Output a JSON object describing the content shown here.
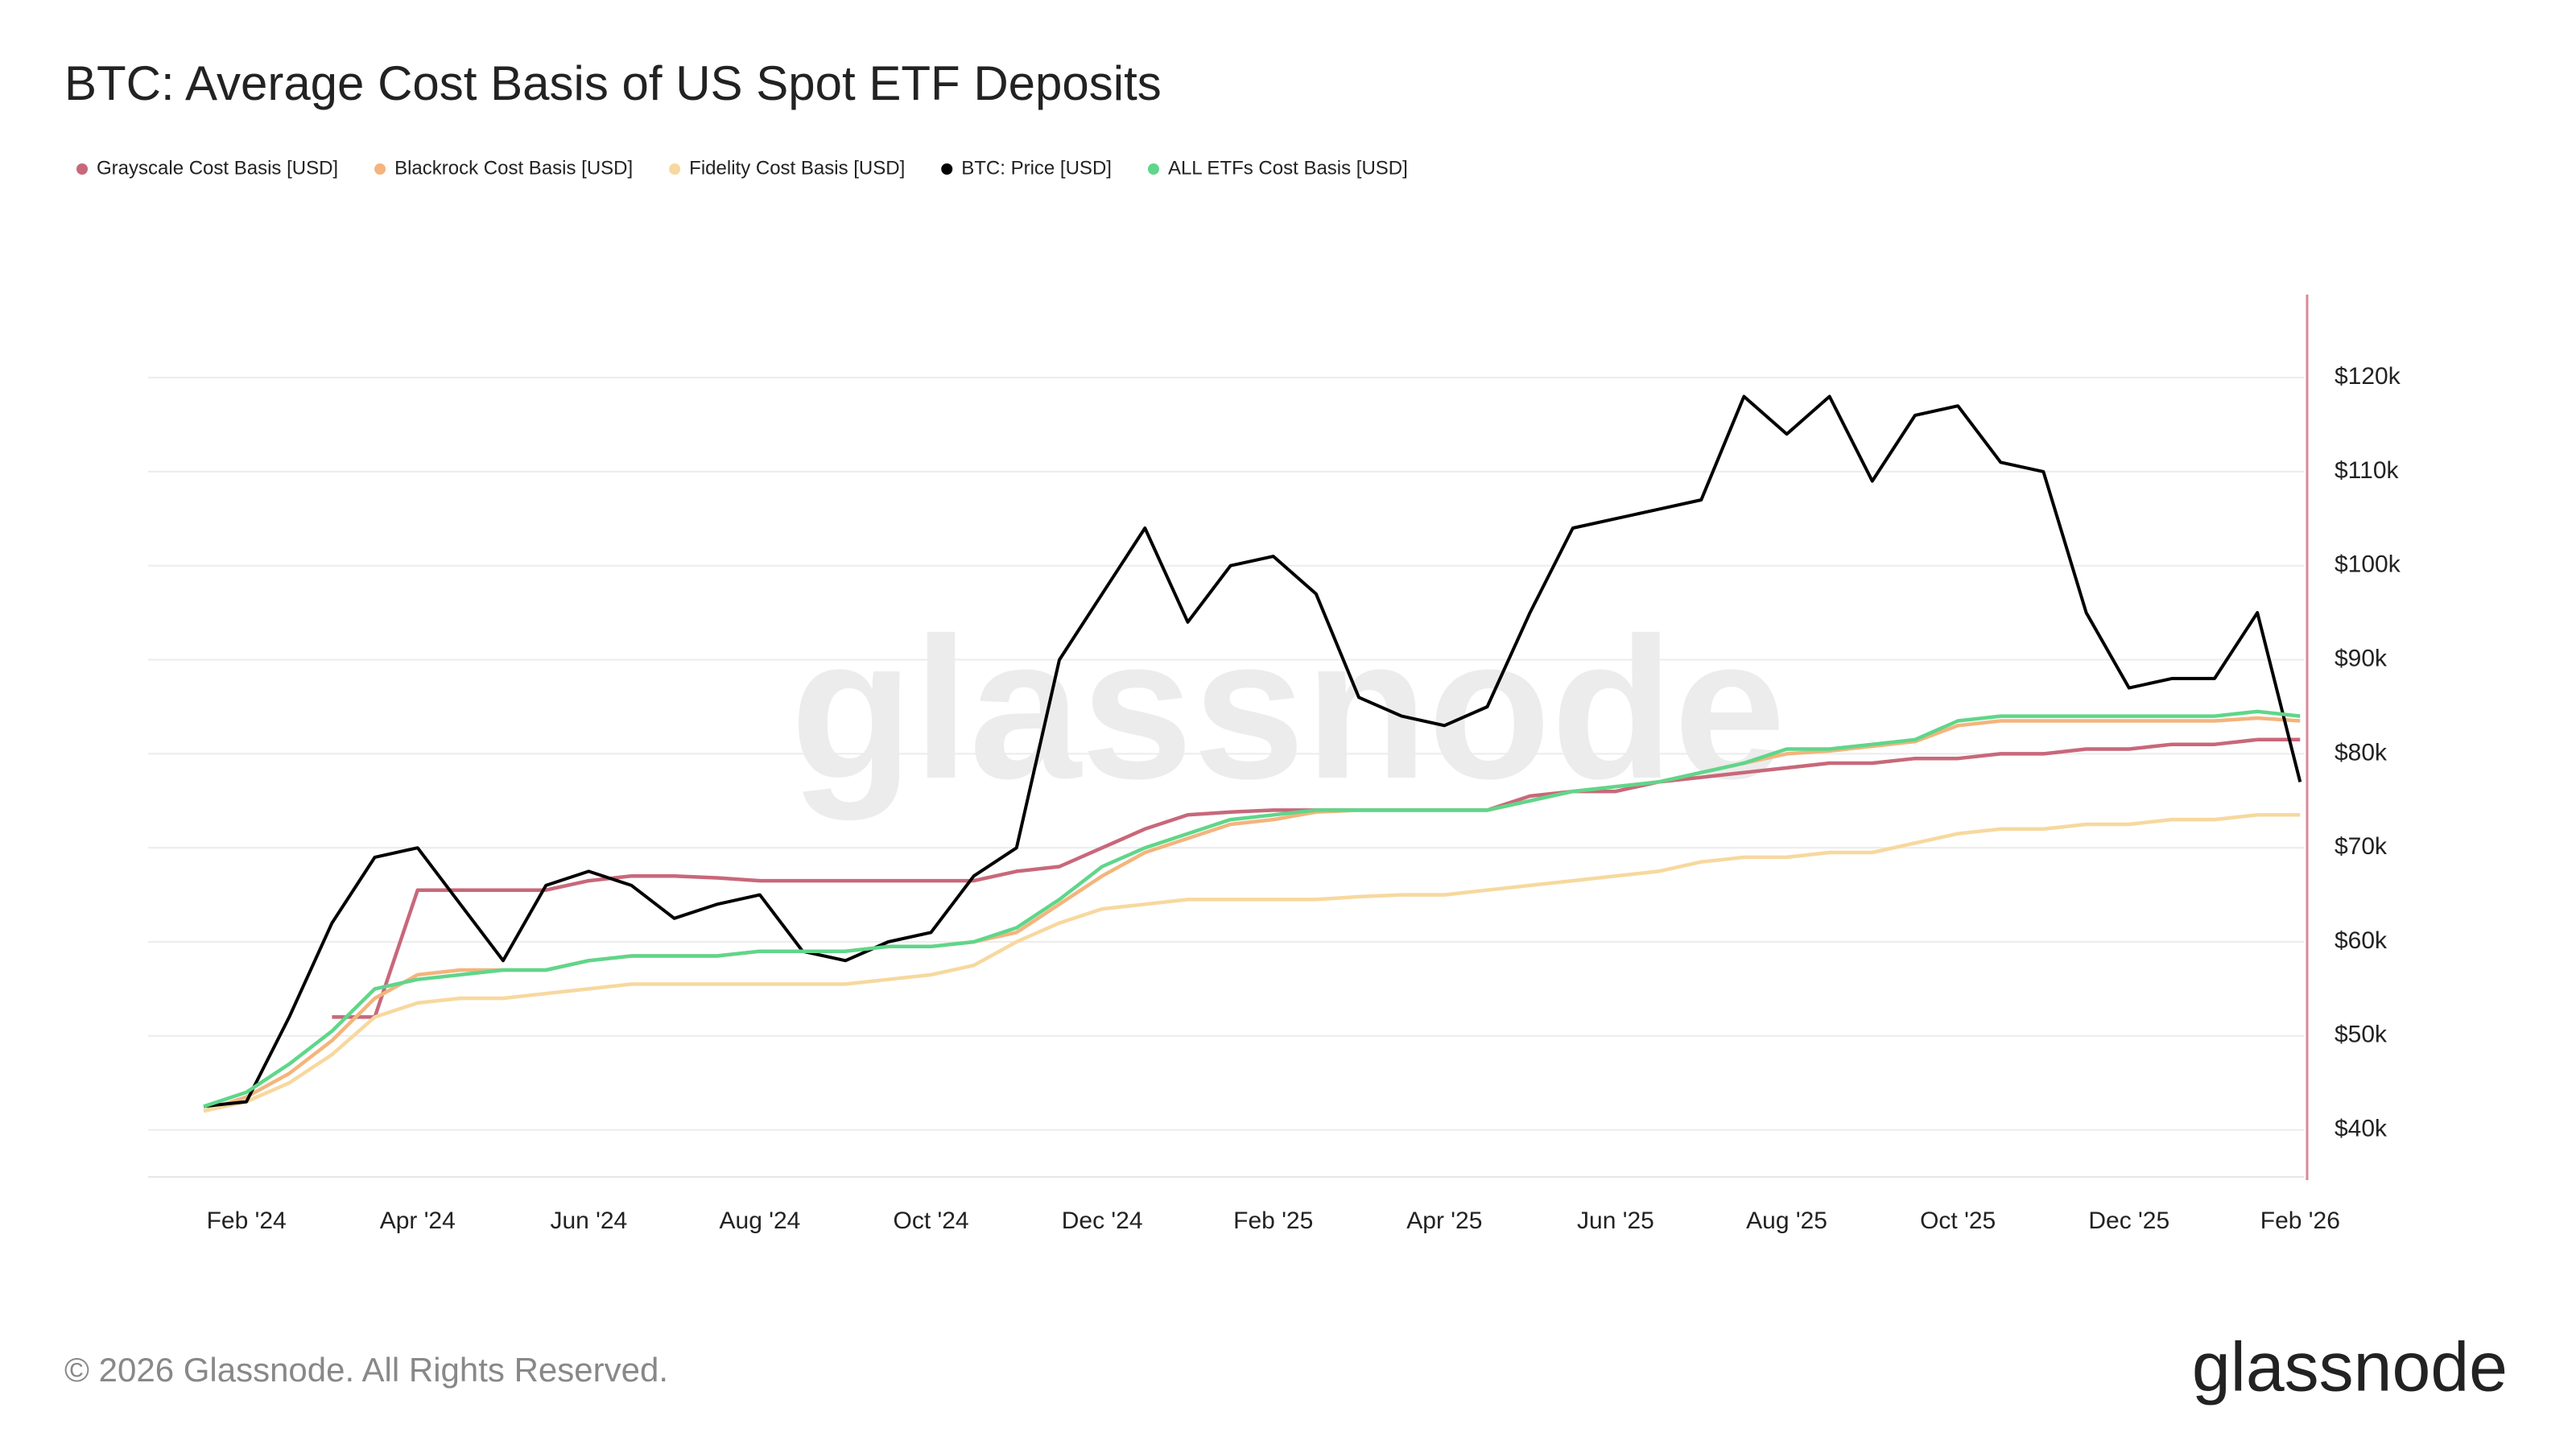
{
  "chart_data": {
    "type": "line",
    "title": "BTC: Average Cost Basis of US Spot ETF Deposits",
    "watermark": "glassnode",
    "footer": "© 2026 Glassnode. All Rights Reserved.",
    "brand": "glassnode",
    "categories": [
      null,
      "Feb '24",
      null,
      null,
      null,
      "Apr '24",
      null,
      null,
      null,
      "Jun '24",
      null,
      null,
      null,
      "Aug '24",
      null,
      null,
      null,
      "Oct '24",
      null,
      null,
      null,
      "Dec '24",
      null,
      null,
      null,
      "Feb '25",
      null,
      null,
      null,
      "Apr '25",
      null,
      null,
      null,
      "Jun '25",
      null,
      null,
      null,
      "Aug '25",
      null,
      null,
      null,
      "Oct '25",
      null,
      null,
      null,
      "Dec '25",
      null,
      null,
      null,
      "Feb '26"
    ],
    "series": [
      {
        "name": "Grayscale Cost Basis [USD]",
        "color": "#c8687a",
        "values": [
          null,
          null,
          null,
          52000,
          52000,
          65500,
          65500,
          65500,
          65500,
          66500,
          67000,
          67000,
          66800,
          66500,
          66500,
          66500,
          66500,
          66500,
          66500,
          67500,
          68000,
          70000,
          72000,
          73500,
          73800,
          74000,
          74000,
          74000,
          74000,
          74000,
          74000,
          75500,
          76000,
          76000,
          77000,
          77500,
          78000,
          78500,
          79000,
          79000,
          79500,
          79500,
          80000,
          80000,
          80500,
          80500,
          81000,
          81000,
          81500,
          81500
        ]
      },
      {
        "name": "Blackrock Cost Basis [USD]",
        "color": "#f4b47c",
        "values": [
          42000,
          43500,
          46000,
          49500,
          54000,
          56500,
          57000,
          57000,
          57000,
          58000,
          58500,
          58500,
          58500,
          59000,
          59000,
          59000,
          59500,
          59500,
          60000,
          61000,
          64000,
          67000,
          69500,
          71000,
          72500,
          73000,
          73800,
          74000,
          74000,
          74000,
          74000,
          75000,
          76000,
          76500,
          77000,
          78000,
          79000,
          80000,
          80300,
          80800,
          81300,
          83000,
          83500,
          83500,
          83500,
          83500,
          83500,
          83500,
          83800,
          83500
        ]
      },
      {
        "name": "Fidelity Cost Basis [USD]",
        "color": "#f7d89e",
        "values": [
          42000,
          43000,
          45000,
          48000,
          52000,
          53500,
          54000,
          54000,
          54500,
          55000,
          55500,
          55500,
          55500,
          55500,
          55500,
          55500,
          56000,
          56500,
          57500,
          60000,
          62000,
          63500,
          64000,
          64500,
          64500,
          64500,
          64500,
          64800,
          65000,
          65000,
          65500,
          66000,
          66500,
          67000,
          67500,
          68500,
          69000,
          69000,
          69500,
          69500,
          70500,
          71500,
          72000,
          72000,
          72500,
          72500,
          73000,
          73000,
          73500,
          73500
        ]
      },
      {
        "name": "BTC: Price [USD]",
        "color": "#000000",
        "values": [
          42500,
          43000,
          52000,
          62000,
          69000,
          70000,
          64000,
          58000,
          66000,
          67500,
          66000,
          62500,
          64000,
          65000,
          59000,
          58000,
          60000,
          61000,
          67000,
          70000,
          90000,
          97000,
          104000,
          94000,
          100000,
          101000,
          97000,
          86000,
          84000,
          83000,
          85000,
          95000,
          104000,
          105000,
          106000,
          107000,
          118000,
          114000,
          118000,
          109000,
          116000,
          117000,
          111000,
          110000,
          95000,
          87000,
          88000,
          88000,
          95000,
          77000
        ]
      },
      {
        "name": "ALL ETFs Cost Basis [USD]",
        "color": "#5fd68a",
        "values": [
          42500,
          44000,
          47000,
          50500,
          55000,
          56000,
          56500,
          57000,
          57000,
          58000,
          58500,
          58500,
          58500,
          59000,
          59000,
          59000,
          59500,
          59500,
          60000,
          61500,
          64500,
          68000,
          70000,
          71500,
          73000,
          73500,
          74000,
          74000,
          74000,
          74000,
          74000,
          75000,
          76000,
          76500,
          77000,
          78000,
          79000,
          80500,
          80500,
          81000,
          81500,
          83500,
          84000,
          84000,
          84000,
          84000,
          84000,
          84000,
          84500,
          84000
        ]
      }
    ],
    "ylim": [
      35000,
      129000
    ],
    "yticks": [
      {
        "value": 40000,
        "label": "$40k"
      },
      {
        "value": 50000,
        "label": "$50k"
      },
      {
        "value": 60000,
        "label": "$60k"
      },
      {
        "value": 70000,
        "label": "$70k"
      },
      {
        "value": 80000,
        "label": "$80k"
      },
      {
        "value": 90000,
        "label": "$90k"
      },
      {
        "value": 100000,
        "label": "$100k"
      },
      {
        "value": 110000,
        "label": "$110k"
      },
      {
        "value": 120000,
        "label": "$120k"
      }
    ],
    "grid": true
  }
}
